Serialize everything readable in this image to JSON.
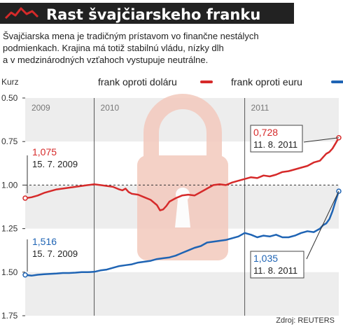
{
  "header": {
    "title": "Rast švajčiarskeho franku",
    "subtitle_lines": [
      "Švajčiarska mena je tradičným prístavom vo finančne nestálych",
      "podmienkach. Krajina má totiž stabilnú vládu, nízky dlh",
      "a v medzinárodných vzťahoch vystupuje neutrálne."
    ]
  },
  "source": "Zdroj: REUTERS",
  "colors": {
    "usd": "#d62a2a",
    "eur": "#1f64b4",
    "title_bg": "#222222",
    "band": "#ededed",
    "watermark": "#f3c9bd"
  },
  "icons": {
    "logo": "rising-line-icon",
    "watermark": "padlock-icon"
  },
  "chart_data": {
    "type": "line",
    "ylabel": "Kurz",
    "y_reversed": true,
    "ylim": [
      0.5,
      1.75
    ],
    "yticks": [
      "0.50",
      "0.75",
      "1.00",
      "1.25",
      "1.50",
      "1.75"
    ],
    "ytick_values": [
      0.5,
      0.75,
      1.0,
      1.25,
      1.5,
      1.75
    ],
    "periods": [
      "2009",
      "2010",
      "2011"
    ],
    "series": [
      {
        "name": "frank oproti doláru",
        "color": "#d62a2a",
        "points": [
          [
            0.0,
            1.075
          ],
          [
            0.02,
            1.07
          ],
          [
            0.04,
            1.06
          ],
          [
            0.06,
            1.045
          ],
          [
            0.08,
            1.035
          ],
          [
            0.1,
            1.025
          ],
          [
            0.12,
            1.02
          ],
          [
            0.14,
            1.015
          ],
          [
            0.16,
            1.01
          ],
          [
            0.18,
            1.005
          ],
          [
            0.2,
            1.0
          ],
          [
            0.22,
            0.995
          ],
          [
            0.24,
            1.0
          ],
          [
            0.26,
            1.005
          ],
          [
            0.28,
            1.01
          ],
          [
            0.3,
            1.025
          ],
          [
            0.31,
            1.03
          ],
          [
            0.32,
            1.02
          ],
          [
            0.33,
            1.04
          ],
          [
            0.34,
            1.05
          ],
          [
            0.36,
            1.055
          ],
          [
            0.38,
            1.07
          ],
          [
            0.4,
            1.085
          ],
          [
            0.42,
            1.115
          ],
          [
            0.43,
            1.145
          ],
          [
            0.44,
            1.14
          ],
          [
            0.45,
            1.12
          ],
          [
            0.46,
            1.095
          ],
          [
            0.48,
            1.075
          ],
          [
            0.5,
            1.06
          ],
          [
            0.52,
            1.055
          ],
          [
            0.54,
            1.06
          ],
          [
            0.56,
            1.04
          ],
          [
            0.58,
            1.02
          ],
          [
            0.6,
            1.0
          ],
          [
            0.62,
            0.995
          ],
          [
            0.64,
            1.0
          ],
          [
            0.66,
            0.985
          ],
          [
            0.68,
            0.975
          ],
          [
            0.7,
            0.965
          ],
          [
            0.72,
            0.955
          ],
          [
            0.74,
            0.96
          ],
          [
            0.76,
            0.945
          ],
          [
            0.78,
            0.95
          ],
          [
            0.8,
            0.94
          ],
          [
            0.82,
            0.925
          ],
          [
            0.84,
            0.92
          ],
          [
            0.86,
            0.91
          ],
          [
            0.88,
            0.9
          ],
          [
            0.9,
            0.89
          ],
          [
            0.92,
            0.87
          ],
          [
            0.94,
            0.86
          ],
          [
            0.95,
            0.84
          ],
          [
            0.96,
            0.82
          ],
          [
            0.97,
            0.81
          ],
          [
            0.98,
            0.79
          ],
          [
            0.99,
            0.76
          ],
          [
            1.0,
            0.728
          ]
        ],
        "annotations": [
          {
            "value": "1,075",
            "date": "15. 7. 2009"
          },
          {
            "value": "0,728",
            "date": "11. 8. 2011"
          }
        ]
      },
      {
        "name": "frank oproti euru",
        "color": "#1f64b4",
        "points": [
          [
            0.0,
            1.516
          ],
          [
            0.02,
            1.52
          ],
          [
            0.04,
            1.515
          ],
          [
            0.06,
            1.512
          ],
          [
            0.08,
            1.51
          ],
          [
            0.1,
            1.508
          ],
          [
            0.12,
            1.505
          ],
          [
            0.14,
            1.505
          ],
          [
            0.16,
            1.503
          ],
          [
            0.18,
            1.5
          ],
          [
            0.2,
            1.5
          ],
          [
            0.22,
            1.498
          ],
          [
            0.24,
            1.49
          ],
          [
            0.26,
            1.485
          ],
          [
            0.28,
            1.475
          ],
          [
            0.3,
            1.465
          ],
          [
            0.32,
            1.46
          ],
          [
            0.34,
            1.455
          ],
          [
            0.36,
            1.445
          ],
          [
            0.38,
            1.44
          ],
          [
            0.4,
            1.435
          ],
          [
            0.42,
            1.425
          ],
          [
            0.44,
            1.42
          ],
          [
            0.46,
            1.415
          ],
          [
            0.48,
            1.405
          ],
          [
            0.5,
            1.39
          ],
          [
            0.52,
            1.375
          ],
          [
            0.54,
            1.36
          ],
          [
            0.56,
            1.35
          ],
          [
            0.58,
            1.33
          ],
          [
            0.6,
            1.325
          ],
          [
            0.62,
            1.32
          ],
          [
            0.64,
            1.315
          ],
          [
            0.66,
            1.305
          ],
          [
            0.68,
            1.295
          ],
          [
            0.7,
            1.275
          ],
          [
            0.72,
            1.285
          ],
          [
            0.74,
            1.3
          ],
          [
            0.76,
            1.29
          ],
          [
            0.78,
            1.295
          ],
          [
            0.8,
            1.285
          ],
          [
            0.82,
            1.3
          ],
          [
            0.84,
            1.3
          ],
          [
            0.86,
            1.29
          ],
          [
            0.88,
            1.275
          ],
          [
            0.9,
            1.265
          ],
          [
            0.92,
            1.27
          ],
          [
            0.94,
            1.25
          ],
          [
            0.95,
            1.23
          ],
          [
            0.96,
            1.22
          ],
          [
            0.97,
            1.195
          ],
          [
            0.98,
            1.15
          ],
          [
            0.99,
            1.09
          ],
          [
            1.0,
            1.035
          ]
        ],
        "annotations": [
          {
            "value": "1,516",
            "date": "15. 7. 2009"
          },
          {
            "value": "1,035",
            "date": "11. 8. 2011"
          }
        ]
      }
    ],
    "grid": false,
    "reference_line": 1.0,
    "legend_position": "top-right"
  }
}
